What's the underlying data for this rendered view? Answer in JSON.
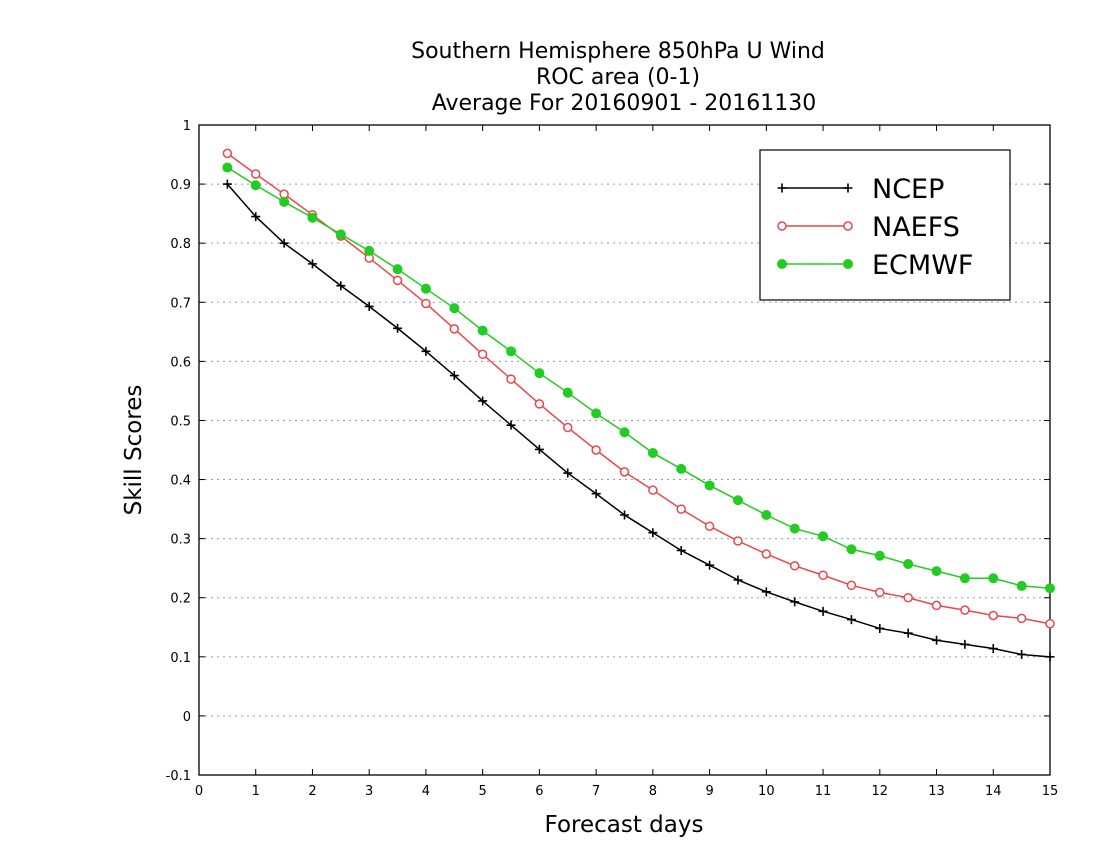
{
  "chart_data": {
    "type": "line",
    "title": [
      "Southern Hemisphere 850hPa U Wind",
      "ROC area (0-1)",
      "Average For 20160901 - 20161130"
    ],
    "xlabel": "Forecast days",
    "ylabel": "Skill Scores",
    "xlim": [
      0,
      15
    ],
    "ylim": [
      -0.1,
      1
    ],
    "xticks": [
      0,
      1,
      2,
      3,
      4,
      5,
      6,
      7,
      8,
      9,
      10,
      11,
      12,
      13,
      14,
      15
    ],
    "xtick_labels": [
      "0",
      "1",
      "2",
      "3",
      "4",
      "5",
      "6",
      "7",
      "8",
      "9",
      "10",
      "11",
      "12",
      "13",
      "14",
      "15"
    ],
    "yticks": [
      -0.1,
      0,
      0.1,
      0.2,
      0.3,
      0.4,
      0.5,
      0.6,
      0.7,
      0.8,
      0.9,
      1
    ],
    "ytick_labels": [
      "-0.1",
      "0",
      "0.1",
      "0.2",
      "0.3",
      "0.4",
      "0.5",
      "0.6",
      "0.7",
      "0.8",
      "0.9",
      "1"
    ],
    "grid": "horizontal dotted",
    "legend_position": "top-right",
    "x": [
      0.5,
      1,
      1.5,
      2,
      2.5,
      3,
      3.5,
      4,
      4.5,
      5,
      5.5,
      6,
      6.5,
      7,
      7.5,
      8,
      8.5,
      9,
      9.5,
      10,
      10.5,
      11,
      11.5,
      12,
      12.5,
      13,
      13.5,
      14,
      14.5,
      15
    ],
    "series": [
      {
        "name": "NCEP",
        "color": "#000000",
        "marker": "plus",
        "values": [
          0.9,
          0.845,
          0.8,
          0.765,
          0.728,
          0.693,
          0.656,
          0.617,
          0.576,
          0.533,
          0.492,
          0.451,
          0.411,
          0.376,
          0.34,
          0.31,
          0.28,
          0.255,
          0.23,
          0.21,
          0.193,
          0.177,
          0.163,
          0.148,
          0.14,
          0.128,
          0.121,
          0.114,
          0.104,
          0.1
        ]
      },
      {
        "name": "NAEFS",
        "color": "#e8474b",
        "marker": "open-circle",
        "values": [
          0.952,
          0.917,
          0.883,
          0.848,
          0.812,
          0.775,
          0.737,
          0.698,
          0.655,
          0.612,
          0.57,
          0.528,
          0.488,
          0.45,
          0.413,
          0.382,
          0.35,
          0.321,
          0.296,
          0.274,
          0.254,
          0.238,
          0.221,
          0.209,
          0.2,
          0.187,
          0.179,
          0.17,
          0.165,
          0.156
        ]
      },
      {
        "name": "ECMWF",
        "color": "#22cc22",
        "marker": "filled-circle",
        "values": [
          0.928,
          0.898,
          0.87,
          0.843,
          0.815,
          0.787,
          0.756,
          0.723,
          0.69,
          0.652,
          0.617,
          0.58,
          0.547,
          0.512,
          0.48,
          0.445,
          0.418,
          0.39,
          0.365,
          0.34,
          0.317,
          0.304,
          0.282,
          0.271,
          0.257,
          0.245,
          0.233,
          0.233,
          0.22,
          0.216
        ]
      }
    ]
  }
}
